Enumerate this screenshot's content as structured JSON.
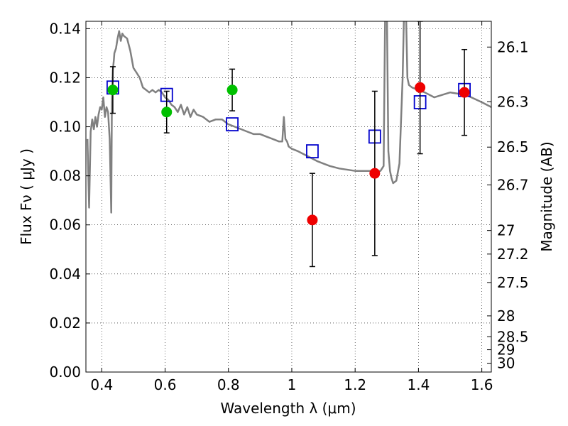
{
  "chart_data": {
    "type": "scatter",
    "title": "",
    "xlabel": "Wavelength  λ (μm)",
    "ylabel": "Flux  Fν  ( μJy )",
    "ylabel_right": "Magnitude (AB)",
    "xlim": [
      0.35,
      1.63
    ],
    "ylim": [
      0.0,
      0.143
    ],
    "grid": true,
    "x_ticks": [
      0.4,
      0.6,
      0.8,
      1.0,
      1.2,
      1.4,
      1.6
    ],
    "x_tick_labels": [
      "0.4",
      "0.6",
      "0.8",
      "1",
      "1.2",
      "1.4",
      "1.6"
    ],
    "y_ticks": [
      0.0,
      0.02,
      0.04,
      0.06,
      0.08,
      0.1,
      0.12,
      0.14
    ],
    "y_tick_labels": [
      "0.00",
      "0.02",
      "0.04",
      "0.06",
      "0.08",
      "0.10",
      "0.12",
      "0.14"
    ],
    "right_ticks": [
      {
        "label": "26.1",
        "flux": 0.1325
      },
      {
        "label": "26.3",
        "flux": 0.1102
      },
      {
        "label": "26.5",
        "flux": 0.0917
      },
      {
        "label": "26.7",
        "flux": 0.0763
      },
      {
        "label": "27",
        "flux": 0.0577
      },
      {
        "label": "27.2",
        "flux": 0.0481
      },
      {
        "label": "27.5",
        "flux": 0.0365
      },
      {
        "label": "28",
        "flux": 0.0229
      },
      {
        "label": "28.5",
        "flux": 0.0144
      },
      {
        "label": "29",
        "flux": 0.0091
      },
      {
        "label": "30",
        "flux": 0.0036
      }
    ],
    "series": [
      {
        "kind": "line",
        "color": "#808080",
        "x": [
          0.355,
          0.36,
          0.365,
          0.37,
          0.375,
          0.38,
          0.385,
          0.39,
          0.395,
          0.4,
          0.405,
          0.41,
          0.415,
          0.42,
          0.425,
          0.43,
          0.432,
          0.435,
          0.438,
          0.44,
          0.445,
          0.45,
          0.455,
          0.46,
          0.465,
          0.47,
          0.48,
          0.49,
          0.5,
          0.51,
          0.52,
          0.53,
          0.54,
          0.55,
          0.56,
          0.57,
          0.58,
          0.59,
          0.6,
          0.61,
          0.62,
          0.63,
          0.64,
          0.65,
          0.66,
          0.67,
          0.68,
          0.69,
          0.7,
          0.72,
          0.74,
          0.76,
          0.78,
          0.8,
          0.82,
          0.84,
          0.86,
          0.88,
          0.9,
          0.92,
          0.94,
          0.96,
          0.97,
          0.975,
          0.98,
          0.985,
          0.99,
          1.0,
          1.02,
          1.05,
          1.08,
          1.1,
          1.12,
          1.15,
          1.2,
          1.25,
          1.28,
          1.29,
          1.295,
          1.3,
          1.305,
          1.31,
          1.315,
          1.32,
          1.33,
          1.34,
          1.35,
          1.355,
          1.36,
          1.365,
          1.37,
          1.38,
          1.4,
          1.42,
          1.45,
          1.5,
          1.55,
          1.6,
          1.63
        ],
        "y": [
          0.095,
          0.067,
          0.098,
          0.103,
          0.099,
          0.104,
          0.1,
          0.105,
          0.108,
          0.107,
          0.112,
          0.104,
          0.108,
          0.106,
          0.095,
          0.065,
          0.11,
          0.123,
          0.127,
          0.13,
          0.132,
          0.136,
          0.139,
          0.135,
          0.138,
          0.137,
          0.136,
          0.131,
          0.124,
          0.122,
          0.12,
          0.116,
          0.115,
          0.114,
          0.115,
          0.114,
          0.115,
          0.114,
          0.112,
          0.111,
          0.109,
          0.108,
          0.106,
          0.109,
          0.105,
          0.108,
          0.104,
          0.107,
          0.105,
          0.104,
          0.102,
          0.103,
          0.103,
          0.101,
          0.1,
          0.099,
          0.098,
          0.097,
          0.097,
          0.096,
          0.095,
          0.094,
          0.094,
          0.104,
          0.095,
          0.094,
          0.092,
          0.091,
          0.09,
          0.088,
          0.086,
          0.085,
          0.084,
          0.083,
          0.082,
          0.082,
          0.082,
          0.084,
          0.15,
          0.15,
          0.09,
          0.082,
          0.079,
          0.077,
          0.078,
          0.085,
          0.12,
          0.15,
          0.15,
          0.12,
          0.117,
          0.116,
          0.115,
          0.114,
          0.112,
          0.114,
          0.113,
          0.11,
          0.108
        ]
      },
      {
        "kind": "model-points",
        "marker": "open-square",
        "color": "#0000cc",
        "x": [
          0.435,
          0.605,
          0.812,
          1.065,
          1.262,
          1.405,
          1.545
        ],
        "y": [
          0.116,
          0.113,
          0.101,
          0.09,
          0.096,
          0.11,
          0.115
        ]
      },
      {
        "kind": "observed",
        "marker": "filled-circle",
        "color": "#00c000",
        "x": [
          0.435,
          0.605,
          0.812
        ],
        "y": [
          0.115,
          0.106,
          0.115
        ],
        "err_low": [
          0.0095,
          0.0085,
          0.0085
        ],
        "err_high": [
          0.0095,
          0.0085,
          0.0085
        ]
      },
      {
        "kind": "observed",
        "marker": "filled-circle",
        "color": "#ee0000",
        "x": [
          1.065,
          1.262,
          1.405,
          1.545
        ],
        "y": [
          0.062,
          0.081,
          0.116,
          0.114
        ],
        "err_low": [
          0.019,
          0.0335,
          0.027,
          0.0175
        ],
        "err_high": [
          0.019,
          0.0335,
          0.027,
          0.0175
        ]
      }
    ]
  }
}
